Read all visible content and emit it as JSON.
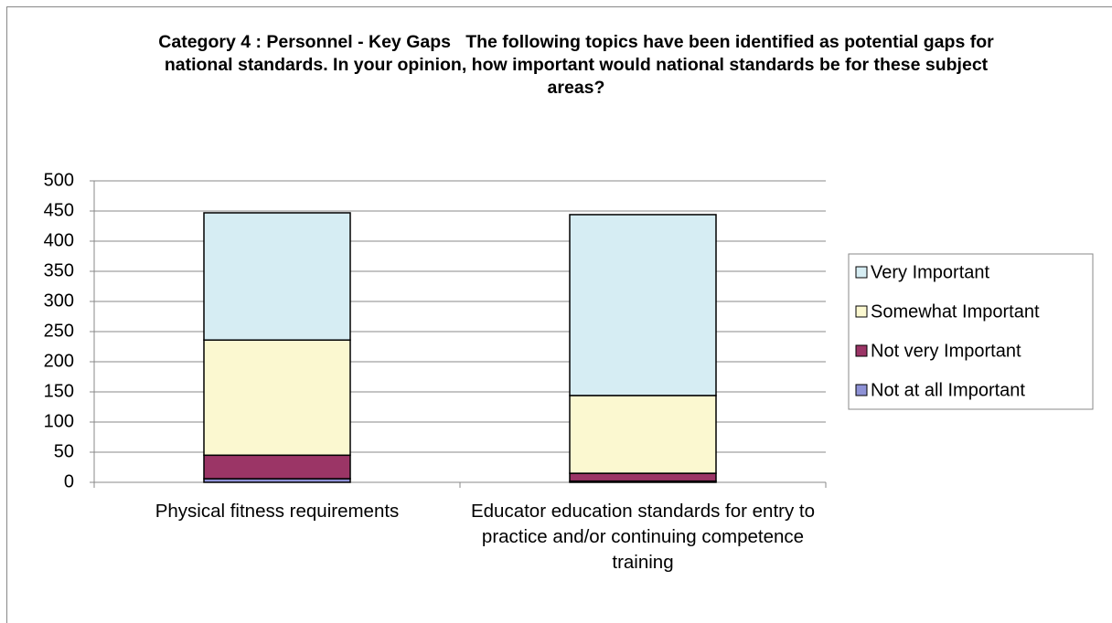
{
  "chart_data": {
    "type": "stacked_bar",
    "title": "Category 4 : Personnel - Key Gaps   The following topics have been identified as potential gaps for national standards. In your opinion, how important would national standards be for these subject areas?",
    "categories": [
      "Physical fitness requirements",
      "Educator education standards for entry to practice and/or continuing competence training"
    ],
    "series": [
      {
        "name": "Not at all Important",
        "color": "#8e92d6",
        "values": [
          6,
          2
        ]
      },
      {
        "name": "Not very Important",
        "color": "#9b3566",
        "values": [
          39,
          13
        ]
      },
      {
        "name": "Somewhat Important",
        "color": "#fbf8d0",
        "values": [
          191,
          129
        ]
      },
      {
        "name": "Very Important",
        "color": "#d6edf3",
        "values": [
          211,
          300
        ]
      }
    ],
    "ylim": [
      0,
      500
    ],
    "yticks": [
      0,
      50,
      100,
      150,
      200,
      250,
      300,
      350,
      400,
      450,
      500
    ],
    "grid": true,
    "legend": "right"
  }
}
